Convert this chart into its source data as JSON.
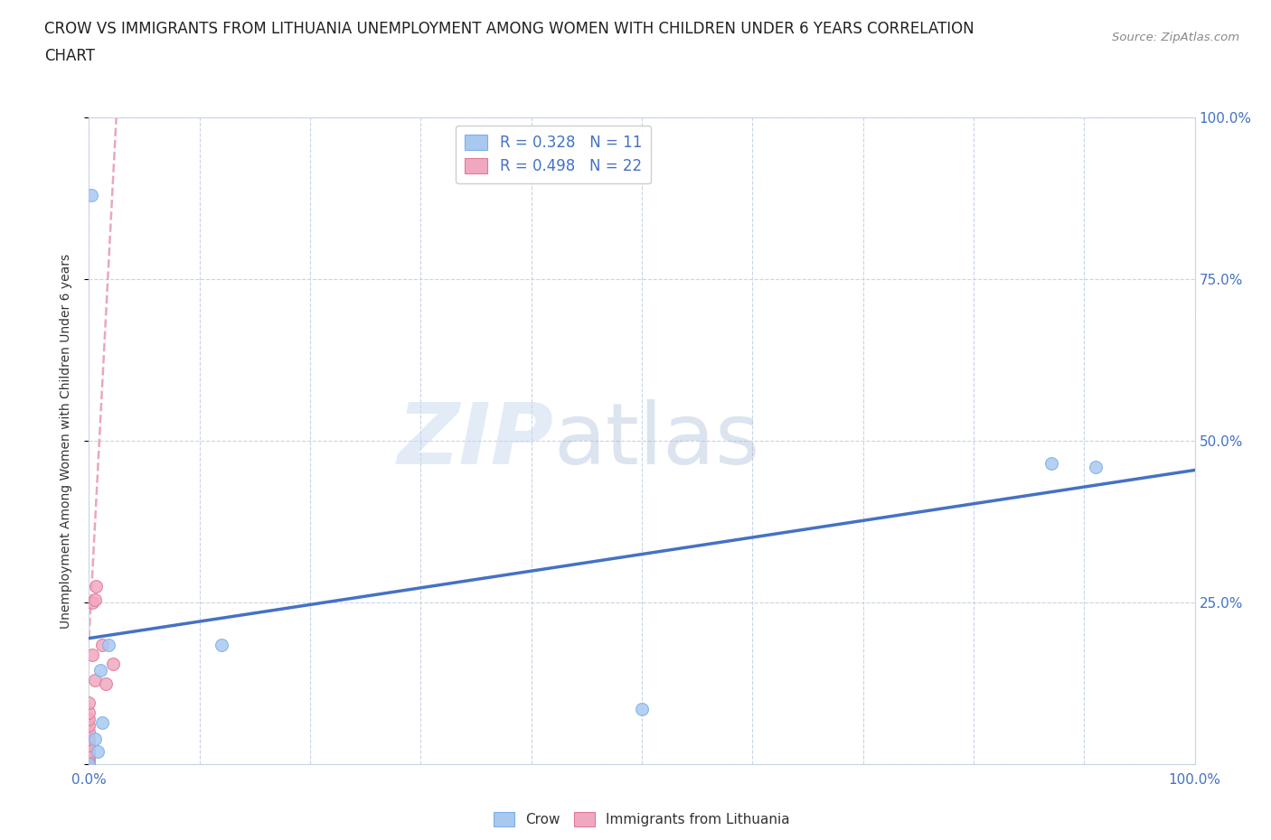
{
  "title_line1": "CROW VS IMMIGRANTS FROM LITHUANIA UNEMPLOYMENT AMONG WOMEN WITH CHILDREN UNDER 6 YEARS CORRELATION",
  "title_line2": "CHART",
  "source": "Source: ZipAtlas.com",
  "ylabel": "Unemployment Among Women with Children Under 6 years",
  "xlim": [
    0.0,
    1.0
  ],
  "ylim": [
    0.0,
    1.0
  ],
  "xticks": [
    0.0,
    0.1,
    0.2,
    0.3,
    0.4,
    0.5,
    0.6,
    0.7,
    0.8,
    0.9,
    1.0
  ],
  "yticks": [
    0.0,
    0.25,
    0.5,
    0.75,
    1.0
  ],
  "xtick_labels": [
    "0.0%",
    "",
    "",
    "",
    "",
    "",
    "",
    "",
    "",
    "",
    "100.0%"
  ],
  "ytick_labels_right": [
    "",
    "25.0%",
    "50.0%",
    "75.0%",
    "100.0%"
  ],
  "crow_color": "#a8c8f0",
  "crow_edge_color": "#7ab0e8",
  "lithuania_color": "#f0a8c0",
  "lithuania_edge_color": "#e07898",
  "crow_R": 0.328,
  "crow_N": 11,
  "lithuania_R": 0.498,
  "lithuania_N": 22,
  "crow_points_x": [
    0.002,
    0.005,
    0.008,
    0.012,
    0.018,
    0.5,
    0.12,
    0.01,
    0.87,
    0.91,
    0.0
  ],
  "crow_points_y": [
    0.88,
    0.04,
    0.02,
    0.065,
    0.185,
    0.085,
    0.185,
    0.145,
    0.465,
    0.46,
    0.0
  ],
  "lithuania_points_x": [
    0.0,
    0.0,
    0.0,
    0.0,
    0.0,
    0.0,
    0.0,
    0.0,
    0.0,
    0.0,
    0.0,
    0.0,
    0.0,
    0.0,
    0.003,
    0.003,
    0.005,
    0.005,
    0.006,
    0.012,
    0.015,
    0.022
  ],
  "lithuania_points_y": [
    0.0,
    0.0,
    0.0,
    0.005,
    0.01,
    0.015,
    0.02,
    0.03,
    0.04,
    0.05,
    0.06,
    0.07,
    0.08,
    0.095,
    0.17,
    0.25,
    0.13,
    0.255,
    0.275,
    0.185,
    0.125,
    0.155
  ],
  "crow_trendline_x": [
    0.0,
    1.0
  ],
  "crow_trendline_y": [
    0.195,
    0.455
  ],
  "crow_trendline_color": "#4472c4",
  "lithuania_trendline_x": [
    0.0,
    0.025
  ],
  "lithuania_trendline_y": [
    0.195,
    1.01
  ],
  "lithuania_trendline_color": "#e07898",
  "background_color": "#ffffff",
  "marker_size": 100,
  "legend_color": "#4472c4",
  "grid_color": "#c8d4e8",
  "tick_color": "#4472c4",
  "watermark_zip_color": "#c8d8f0",
  "watermark_atlas_color": "#a8bcd8"
}
